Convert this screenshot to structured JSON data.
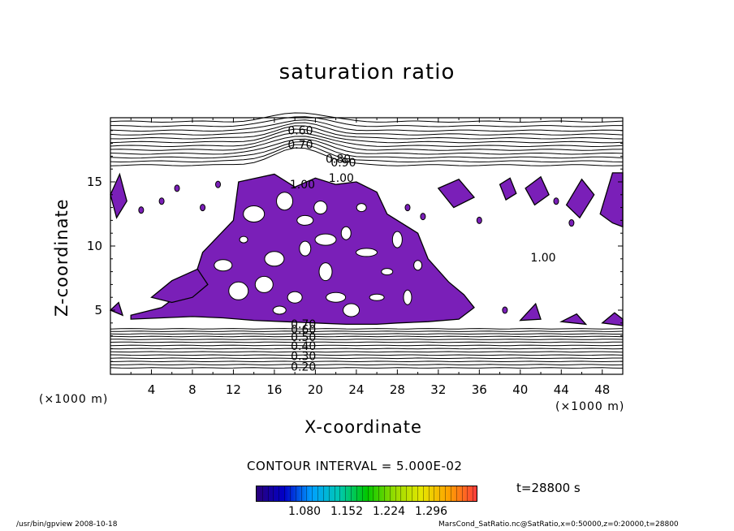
{
  "header": {
    "title": "saturation ratio"
  },
  "chart_data": {
    "type": "heatmap",
    "title": "saturation ratio",
    "xlabel": "X-coordinate",
    "ylabel": "Z-coordinate",
    "x_unit": "(×1000 m)",
    "y_unit": "(×1000 m)",
    "xlim": [
      0,
      50
    ],
    "ylim": [
      0,
      20
    ],
    "x_ticks": [
      4,
      8,
      12,
      16,
      20,
      24,
      28,
      32,
      36,
      40,
      44,
      48
    ],
    "y_ticks": [
      5,
      10,
      15
    ],
    "contour_interval_label": "CONTOUR INTERVAL = 5.000E-02",
    "contour_labels": [
      "0.60",
      "0.70",
      "0.80",
      "0.90",
      "1.00",
      "1.00",
      "1.00",
      "0.20",
      "0.30",
      "0.40",
      "0.50",
      "0.60",
      "0.70"
    ],
    "colorbar": {
      "tick_labels": [
        "1.080",
        "1.152",
        "1.224",
        "1.296"
      ],
      "colors": [
        "#2a007a",
        "#0000c8",
        "#00a0ff",
        "#00c8b4",
        "#00c800",
        "#96dc00",
        "#e6e600",
        "#ffa000",
        "#ff3c3c"
      ]
    },
    "fill_color": "#7a1fb8",
    "time_label": "t=28800 s"
  },
  "footer": {
    "left": "/usr/bin/gpview   2008-10-18",
    "right": "MarsCond_SatRatio.nc@SatRatio,x=0:50000,z=0:20000,t=28800"
  }
}
